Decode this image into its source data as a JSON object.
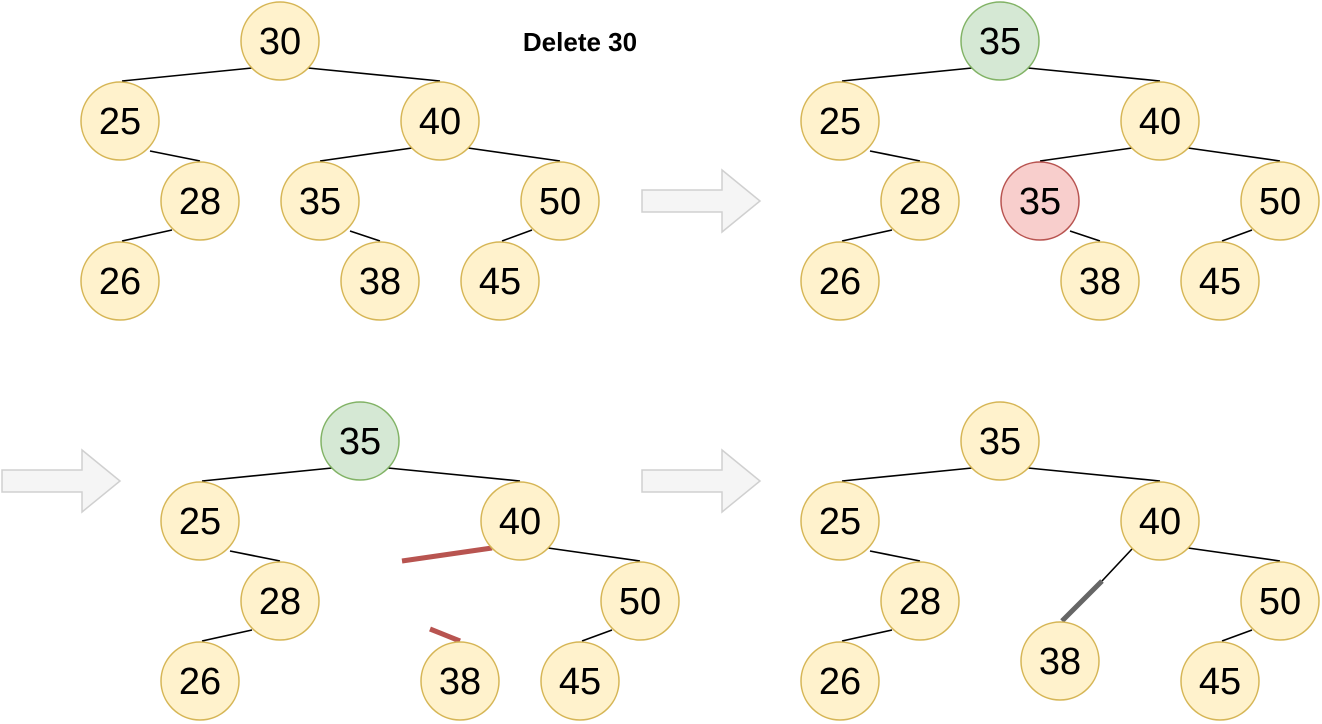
{
  "title": "Delete 30",
  "colors": {
    "node_fill": "#fff2cc",
    "node_stroke": "#d6b656",
    "successor_fill": "#d5e8d4",
    "successor_stroke": "#82b366",
    "removed_fill": "#f8cecc",
    "removed_stroke": "#b85450",
    "cut_edge": "#b85450",
    "new_edge": "#666666",
    "arrow_fill": "#f5f5f5",
    "arrow_stroke": "#d0d0d0"
  },
  "panels": [
    {
      "name": "step-1-original",
      "nodes": [
        {
          "id": "n30",
          "label": "30"
        },
        {
          "id": "n25",
          "label": "25"
        },
        {
          "id": "n40",
          "label": "40"
        },
        {
          "id": "n28",
          "label": "28"
        },
        {
          "id": "n35",
          "label": "35"
        },
        {
          "id": "n50",
          "label": "50"
        },
        {
          "id": "n26",
          "label": "26"
        },
        {
          "id": "n38",
          "label": "38"
        },
        {
          "id": "n45",
          "label": "45"
        }
      ]
    },
    {
      "name": "step-2-copy-successor",
      "nodes": [
        {
          "id": "n35root",
          "label": "35",
          "state": "successor"
        },
        {
          "id": "n25",
          "label": "25"
        },
        {
          "id": "n40",
          "label": "40"
        },
        {
          "id": "n28",
          "label": "28"
        },
        {
          "id": "n35",
          "label": "35",
          "state": "removed"
        },
        {
          "id": "n50",
          "label": "50"
        },
        {
          "id": "n26",
          "label": "26"
        },
        {
          "id": "n38",
          "label": "38"
        },
        {
          "id": "n45",
          "label": "45"
        }
      ]
    },
    {
      "name": "step-3-remove-successor",
      "nodes": [
        {
          "id": "n35root",
          "label": "35",
          "state": "successor"
        },
        {
          "id": "n25",
          "label": "25"
        },
        {
          "id": "n40",
          "label": "40"
        },
        {
          "id": "n28",
          "label": "28"
        },
        {
          "id": "n50",
          "label": "50"
        },
        {
          "id": "n26",
          "label": "26"
        },
        {
          "id": "n38",
          "label": "38"
        },
        {
          "id": "n45",
          "label": "45"
        }
      ]
    },
    {
      "name": "step-4-final",
      "nodes": [
        {
          "id": "n35root",
          "label": "35"
        },
        {
          "id": "n25",
          "label": "25"
        },
        {
          "id": "n40",
          "label": "40"
        },
        {
          "id": "n28",
          "label": "28"
        },
        {
          "id": "n50",
          "label": "50"
        },
        {
          "id": "n26",
          "label": "26"
        },
        {
          "id": "n38",
          "label": "38"
        },
        {
          "id": "n45",
          "label": "45"
        }
      ]
    }
  ]
}
